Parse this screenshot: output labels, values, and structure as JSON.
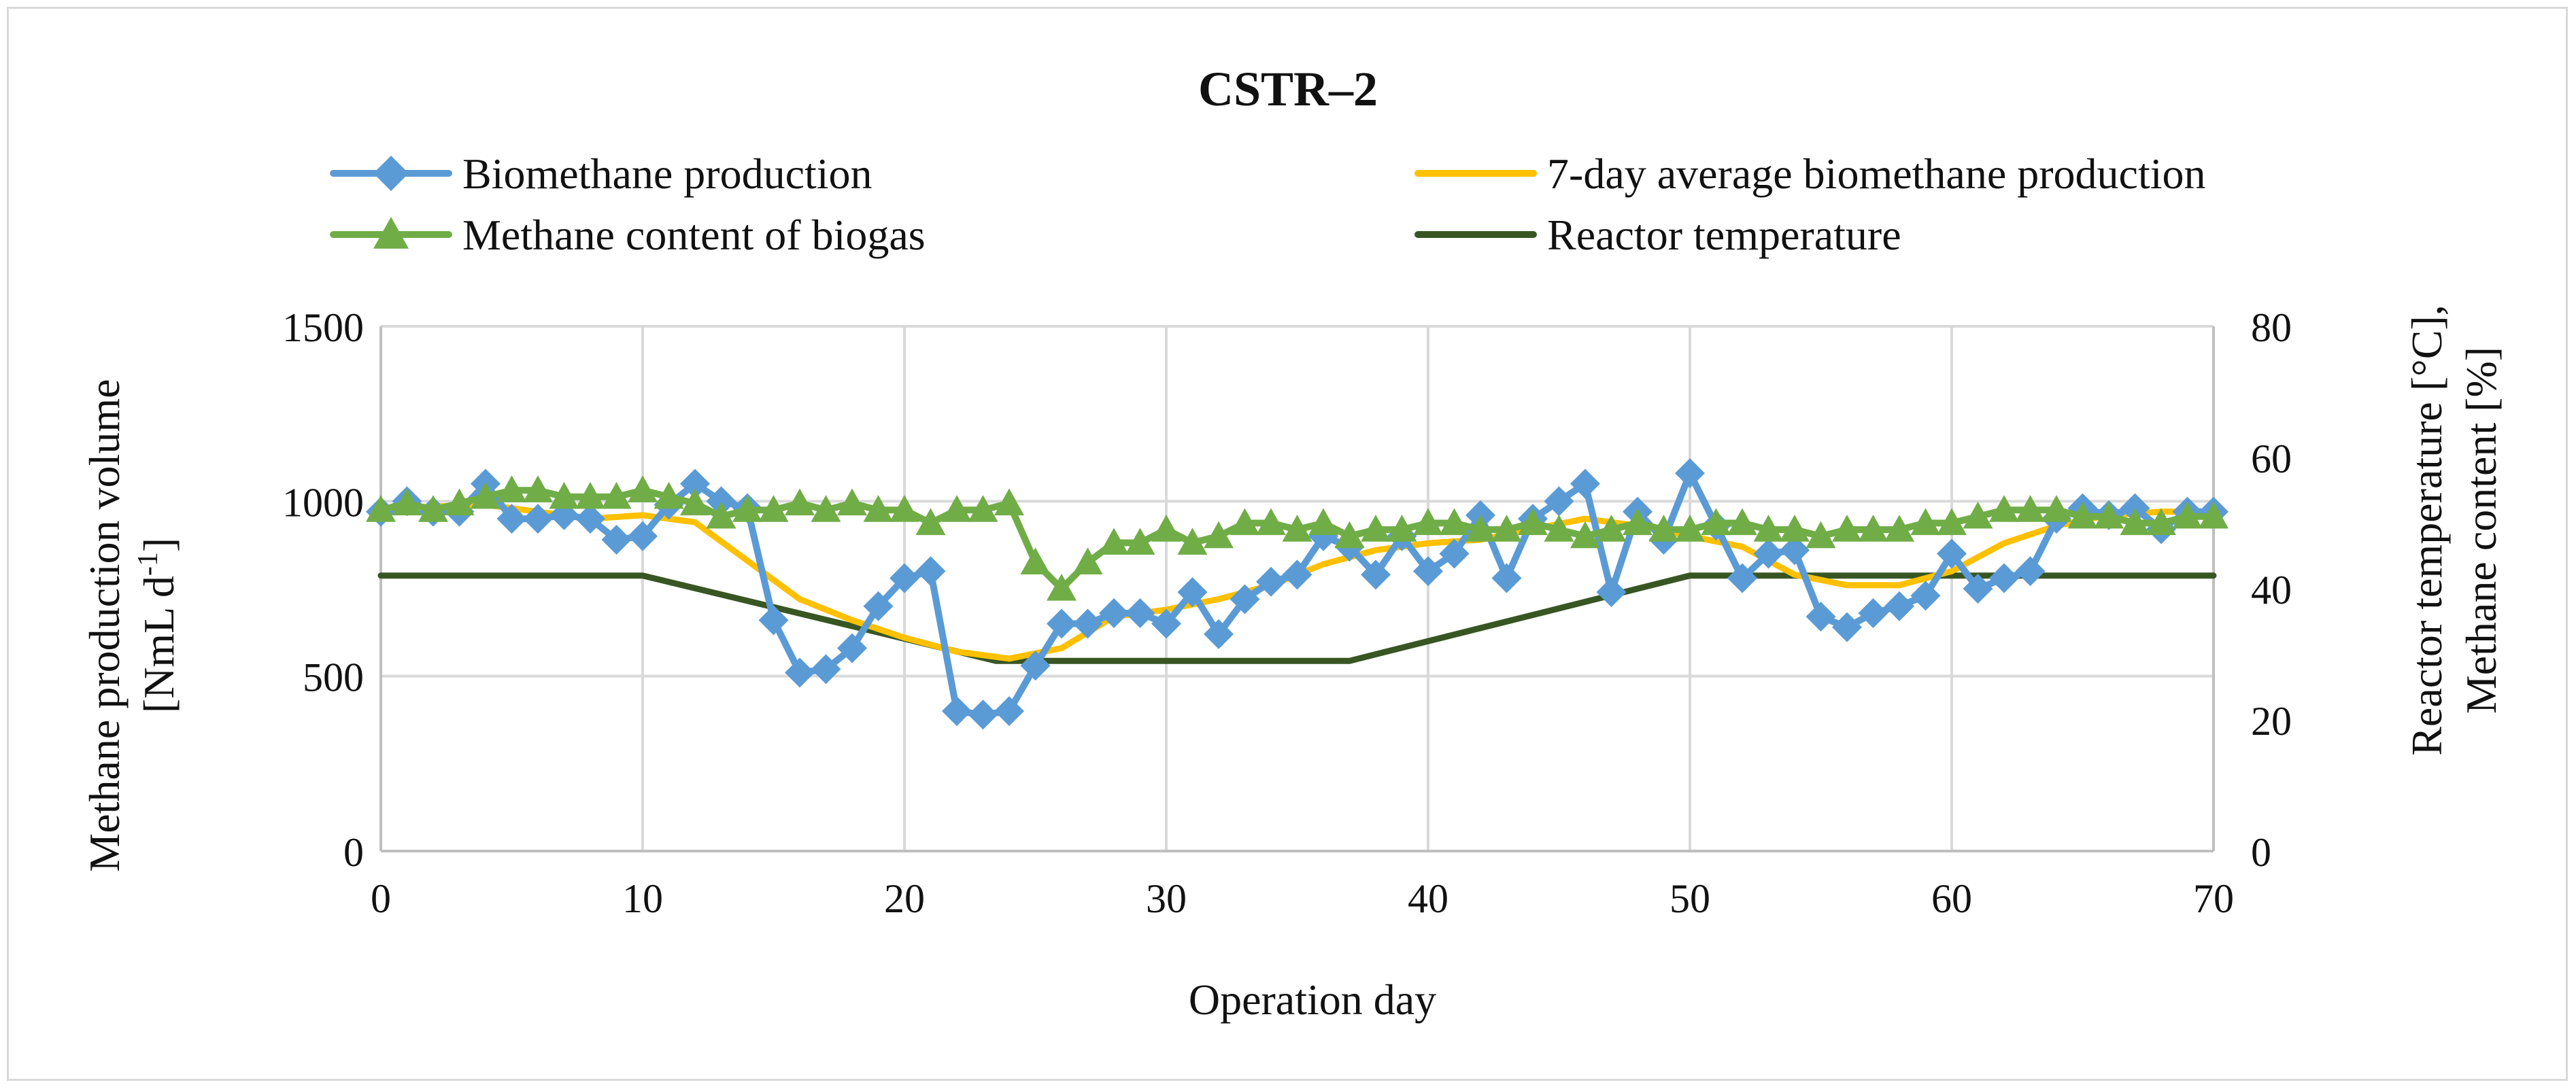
{
  "chart_data": {
    "type": "line",
    "title": "CSTR–2",
    "xlabel": "Operation day",
    "ylabel_left": [
      "Methane production volume",
      "[NmL d",
      "-1",
      "]"
    ],
    "ylabel_right": [
      "Reactor temperature [°C],",
      "Methane content [%]"
    ],
    "xlim": [
      0,
      70
    ],
    "ylim_left": [
      0,
      1500
    ],
    "ylim_right": [
      0,
      80
    ],
    "x_ticks": [
      "0",
      "10",
      "20",
      "30",
      "40",
      "50",
      "60",
      "70"
    ],
    "y_left_ticks": [
      "0",
      "500",
      "1000",
      "1500"
    ],
    "y_right_ticks": [
      "0",
      "20",
      "40",
      "60",
      "80"
    ],
    "grid": true,
    "legend_position": "top",
    "series": [
      {
        "name": "Biomethane production",
        "axis": "left",
        "color": "#5b9bd5",
        "marker": "diamond",
        "x": [
          0,
          1,
          2,
          3,
          4,
          5,
          6,
          7,
          8,
          9,
          10,
          11,
          12,
          13,
          14,
          15,
          16,
          17,
          18,
          19,
          20,
          21,
          22,
          23,
          24,
          25,
          26,
          27,
          28,
          29,
          30,
          31,
          32,
          33,
          34,
          35,
          36,
          37,
          38,
          39,
          40,
          41,
          42,
          43,
          44,
          45,
          46,
          47,
          48,
          49,
          50,
          51,
          52,
          53,
          54,
          55,
          56,
          57,
          58,
          59,
          60,
          61,
          62,
          63,
          64,
          65,
          66,
          67,
          68,
          69,
          70
        ],
        "values": [
          970,
          1000,
          970,
          970,
          1050,
          950,
          950,
          960,
          950,
          890,
          900,
          990,
          1050,
          1000,
          980,
          660,
          510,
          520,
          580,
          700,
          780,
          800,
          400,
          390,
          400,
          530,
          650,
          650,
          680,
          680,
          650,
          740,
          620,
          720,
          770,
          790,
          900,
          870,
          790,
          900,
          800,
          850,
          960,
          780,
          950,
          1000,
          1050,
          740,
          970,
          890,
          1080,
          930,
          780,
          850,
          860,
          670,
          640,
          680,
          700,
          730,
          850,
          750,
          780,
          800,
          950,
          980,
          960,
          980,
          920,
          970,
          970
        ]
      },
      {
        "name": "7-day average biomethane production",
        "axis": "left",
        "color": "#ffc000",
        "marker": "none",
        "x": [
          0,
          2,
          4,
          6,
          8,
          10,
          12,
          14,
          16,
          18,
          20,
          22,
          24,
          26,
          28,
          30,
          32,
          34,
          36,
          38,
          40,
          42,
          44,
          46,
          48,
          50,
          52,
          54,
          56,
          58,
          60,
          62,
          64,
          66,
          68,
          70
        ],
        "values": [
          980,
          985,
          990,
          970,
          950,
          960,
          940,
          830,
          720,
          660,
          610,
          570,
          550,
          580,
          670,
          690,
          720,
          760,
          820,
          860,
          880,
          890,
          920,
          950,
          930,
          900,
          870,
          790,
          760,
          760,
          800,
          880,
          930,
          960,
          970,
          970
        ]
      },
      {
        "name": "Methane content of biogas",
        "axis": "right",
        "color": "#70ad47",
        "marker": "triangle",
        "x": [
          0,
          1,
          2,
          3,
          4,
          5,
          6,
          7,
          8,
          9,
          10,
          11,
          12,
          13,
          14,
          15,
          16,
          17,
          18,
          19,
          20,
          21,
          22,
          23,
          24,
          25,
          26,
          27,
          28,
          29,
          30,
          31,
          32,
          33,
          34,
          35,
          36,
          37,
          38,
          39,
          40,
          41,
          42,
          43,
          44,
          45,
          46,
          47,
          48,
          49,
          50,
          51,
          52,
          53,
          54,
          55,
          56,
          57,
          58,
          59,
          60,
          61,
          62,
          63,
          64,
          65,
          66,
          67,
          68,
          69,
          70
        ],
        "values": [
          52,
          53,
          52,
          53,
          54,
          55,
          55,
          54,
          54,
          54,
          55,
          54,
          53,
          51,
          52,
          52,
          53,
          52,
          53,
          52,
          52,
          50,
          52,
          52,
          53,
          44,
          40,
          44,
          47,
          47,
          49,
          47,
          48,
          50,
          50,
          49,
          50,
          48,
          49,
          49,
          50,
          50,
          49,
          49,
          50,
          49,
          48,
          49,
          50,
          49,
          49,
          50,
          50,
          49,
          49,
          48,
          49,
          49,
          49,
          50,
          50,
          51,
          52,
          52,
          52,
          51,
          51,
          50,
          50,
          51,
          51
        ]
      },
      {
        "name": "Reactor temperature",
        "axis": "right",
        "color": "#375623",
        "marker": "none",
        "x": [
          0,
          10,
          23.5,
          37,
          50,
          70
        ],
        "values": [
          42,
          42,
          29,
          29,
          42,
          42
        ]
      }
    ]
  }
}
